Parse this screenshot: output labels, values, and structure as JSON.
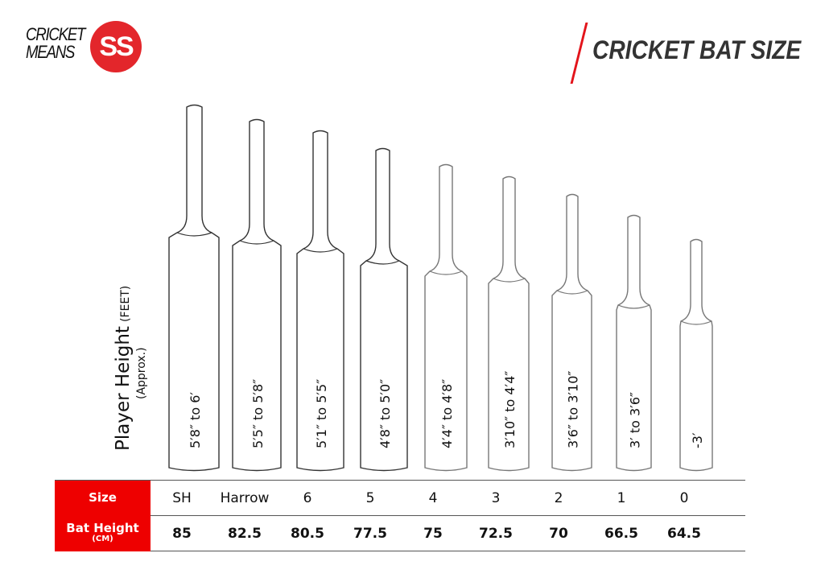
{
  "logo": {
    "line1": "CRICKET",
    "line2": "MEANS",
    "mark": "SS",
    "color": "#e3262b"
  },
  "title": "CRICKET BAT SIZE",
  "accent_color": "#ee0000",
  "axis_label": {
    "main": "Player Height",
    "unit": "(FEET)",
    "sub": "(Approx.)"
  },
  "table": {
    "size_label": "Size",
    "height_label": "Bat Height",
    "height_unit": "(CM)",
    "sizes": [
      "SH",
      "Harrow",
      "6",
      "5",
      "4",
      "3",
      "2",
      "1",
      "0"
    ],
    "bat_heights": [
      "85",
      "82.5",
      "80.5",
      "77.5",
      "75",
      "72.5",
      "70",
      "66.5",
      "64.5"
    ]
  },
  "player_heights": [
    "5′8″ to 6′",
    "5′5″ to 5′8″",
    "5′1″ to 5′5″",
    "4′8″ to 5′0″",
    "4′4″ to 4′8″",
    "3′10″ to 4′4″",
    "3′6″ to 3′10″",
    "3′ to 3′6″",
    "-3′"
  ]
}
